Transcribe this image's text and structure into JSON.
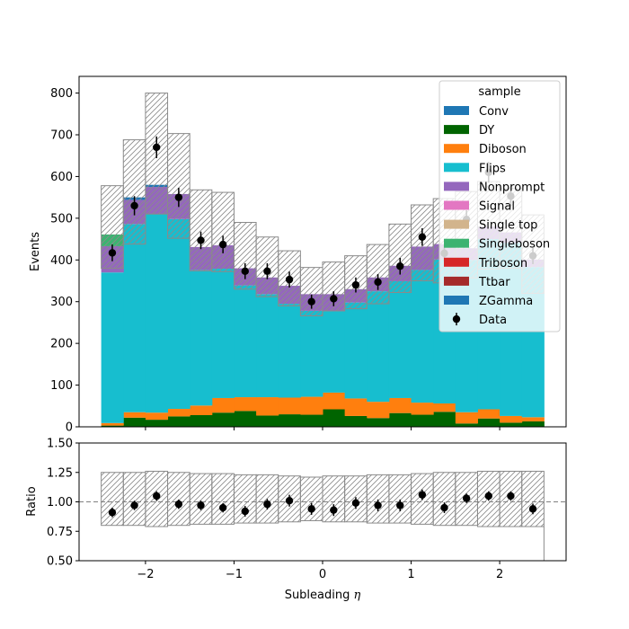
{
  "chart_data": [
    {
      "type": "bar",
      "subtype": "stacked-step-histogram",
      "xlabel_prefix": "Subleading ",
      "xlabel_symbol": "η",
      "ylabel": "Events",
      "xlim": [
        -2.75,
        2.75
      ],
      "ylim": [
        0,
        840
      ],
      "x_ticks": [
        -2,
        -1,
        0,
        1,
        2
      ],
      "x_tick_labels": [
        "−2",
        "−1",
        "0",
        "1",
        "2"
      ],
      "y_ticks": [
        0,
        100,
        200,
        300,
        400,
        500,
        600,
        700,
        800
      ],
      "bin_edges": [
        -2.5,
        -2.25,
        -2.0,
        -1.75,
        -1.5,
        -1.25,
        -1.0,
        -0.75,
        -0.5,
        -0.25,
        0.0,
        0.25,
        0.5,
        0.75,
        1.0,
        1.25,
        1.5,
        1.75,
        2.0,
        2.25,
        2.5
      ],
      "legend": {
        "title": "sample",
        "position": "upper right",
        "entries": [
          "Conv",
          "DY",
          "Diboson",
          "Flips",
          "Nonprompt",
          "Signal",
          "Single top",
          "Singleboson",
          "Triboson",
          "Ttbar",
          "ZGamma",
          "Data"
        ]
      },
      "series": [
        {
          "name": "DY",
          "color": "#006400",
          "values": [
            3,
            22,
            17,
            25,
            28,
            34,
            38,
            27,
            30,
            29,
            42,
            26,
            21,
            33,
            29,
            36,
            8,
            20,
            10,
            13
          ]
        },
        {
          "name": "Diboson",
          "color": "#ff7f0e",
          "values": [
            6,
            13,
            17,
            18,
            23,
            35,
            33,
            44,
            40,
            43,
            40,
            42,
            39,
            36,
            29,
            20,
            27,
            22,
            16,
            10
          ]
        },
        {
          "name": "Flips",
          "color": "#17becf",
          "values": [
            361,
            451,
            476,
            455,
            325,
            310,
            268,
            247,
            225,
            206,
            195,
            230,
            265,
            280,
            318,
            345,
            365,
            408,
            415,
            360
          ]
        },
        {
          "name": "Nonprompt",
          "color": "#9467bd",
          "values": [
            63,
            58,
            65,
            60,
            55,
            56,
            41,
            40,
            43,
            40,
            41,
            32,
            33,
            37,
            56,
            37,
            28,
            30,
            25,
            18
          ]
        },
        {
          "name": "Singleboson",
          "color": "#3cb371",
          "values": [
            28,
            0,
            0,
            0,
            0,
            0,
            0,
            0,
            0,
            0,
            0,
            0,
            0,
            0,
            0,
            0,
            0,
            0,
            0,
            0
          ]
        },
        {
          "name": "ZGamma",
          "color": "#1f77b4",
          "values": [
            0,
            6,
            5,
            0,
            0,
            0,
            0,
            0,
            0,
            0,
            0,
            0,
            0,
            0,
            0,
            0,
            0,
            0,
            0,
            0
          ]
        }
      ],
      "uncertainty_band": {
        "upper": [
          578,
          688,
          800,
          703,
          568,
          562,
          490,
          455,
          422,
          382,
          395,
          410,
          437,
          486,
          532,
          547,
          564,
          588,
          572,
          508
        ],
        "lower": [
          380,
          438,
          510,
          452,
          374,
          372,
          330,
          312,
          290,
          266,
          278,
          283,
          295,
          322,
          350,
          345,
          357,
          378,
          380,
          320
        ]
      },
      "data": {
        "name": "Data",
        "x": [
          -2.375,
          -2.125,
          -1.875,
          -1.625,
          -1.375,
          -1.125,
          -0.875,
          -0.625,
          -0.375,
          -0.125,
          0.125,
          0.375,
          0.625,
          0.875,
          1.125,
          1.375,
          1.625,
          1.875,
          2.125,
          2.375
        ],
        "y": [
          417,
          530,
          670,
          550,
          447,
          437,
          373,
          373,
          353,
          300,
          307,
          340,
          347,
          385,
          455,
          416,
          497,
          610,
          553,
          410
        ],
        "err": [
          20,
          23,
          26,
          23,
          21,
          21,
          19,
          19,
          19,
          17,
          18,
          18,
          19,
          20,
          21,
          20,
          22,
          25,
          24,
          20
        ]
      }
    },
    {
      "type": "scatter",
      "subtype": "ratio",
      "xlabel_prefix": "Subleading ",
      "xlabel_symbol": "η",
      "ylabel": "Ratio",
      "xlim": [
        -2.75,
        2.75
      ],
      "ylim": [
        0.5,
        1.5
      ],
      "x_ticks": [
        -2,
        -1,
        0,
        1,
        2
      ],
      "x_tick_labels": [
        "−2",
        "−1",
        "0",
        "1",
        "2"
      ],
      "y_ticks": [
        0.5,
        0.75,
        1.0,
        1.25,
        1.5
      ],
      "y_tick_labels": [
        "0.50",
        "0.75",
        "1.00",
        "1.25",
        "1.50"
      ],
      "reference_line": 1.0,
      "band_upper": [
        1.25,
        1.25,
        1.26,
        1.25,
        1.24,
        1.24,
        1.23,
        1.23,
        1.22,
        1.21,
        1.22,
        1.22,
        1.23,
        1.23,
        1.24,
        1.25,
        1.25,
        1.26,
        1.26,
        1.26
      ],
      "band_lower": [
        0.8,
        0.8,
        0.79,
        0.8,
        0.81,
        0.81,
        0.82,
        0.82,
        0.83,
        0.84,
        0.83,
        0.83,
        0.82,
        0.82,
        0.81,
        0.8,
        0.8,
        0.79,
        0.79,
        0.79
      ],
      "x": [
        -2.375,
        -2.125,
        -1.875,
        -1.625,
        -1.375,
        -1.125,
        -0.875,
        -0.625,
        -0.375,
        -0.125,
        0.125,
        0.375,
        0.625,
        0.875,
        1.125,
        1.375,
        1.625,
        1.875,
        2.125,
        2.375
      ],
      "y": [
        0.91,
        0.97,
        1.05,
        0.98,
        0.97,
        0.95,
        0.92,
        0.98,
        1.01,
        0.94,
        0.93,
        0.99,
        0.97,
        0.97,
        1.06,
        0.95,
        1.03,
        1.05,
        1.05,
        0.94
      ],
      "err": [
        0.04,
        0.04,
        0.04,
        0.04,
        0.04,
        0.04,
        0.045,
        0.045,
        0.05,
        0.05,
        0.05,
        0.05,
        0.05,
        0.05,
        0.045,
        0.045,
        0.04,
        0.04,
        0.04,
        0.045
      ]
    }
  ]
}
